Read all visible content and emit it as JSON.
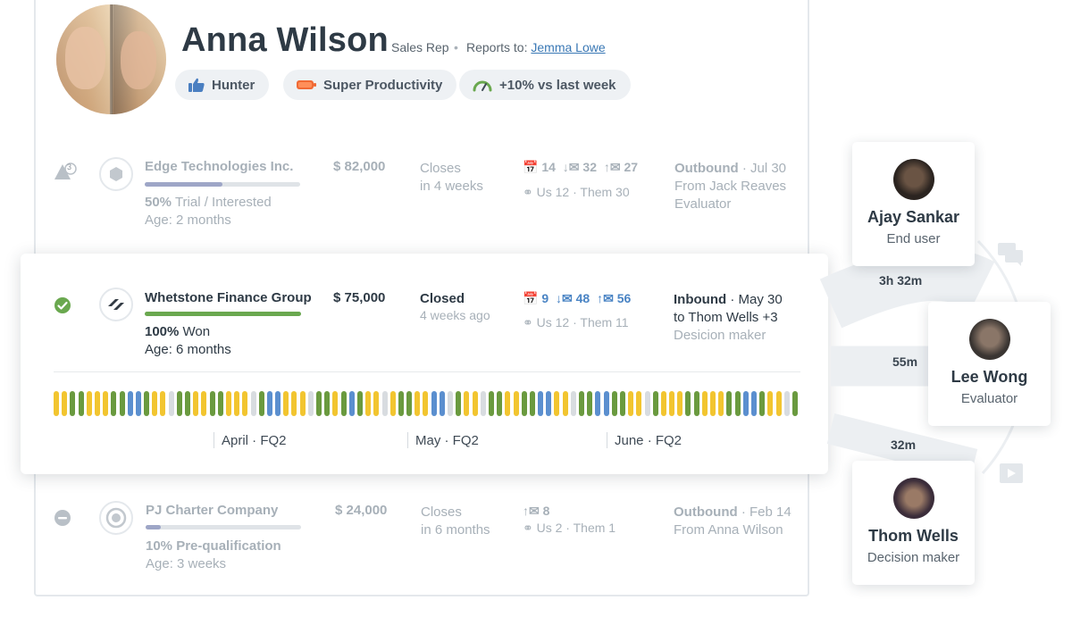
{
  "profile": {
    "name": "Anna Wilson",
    "role": "Sales Rep",
    "separator": "•",
    "reports_label": "Reports to:",
    "reports_name": "Jemma Lowe",
    "badges": [
      {
        "label": "Hunter",
        "icon": "thumbs-up-icon"
      },
      {
        "label": "Super Productivity",
        "icon": "battery-icon"
      },
      {
        "label": "+10% vs last week",
        "icon": "gauge-icon"
      }
    ]
  },
  "deals": [
    {
      "company": "Edge Technologies Inc.",
      "status_icon": "warning-icon",
      "status_badge": "3",
      "progress_pct": "50%",
      "progress_fraction": 0.5,
      "stage": "Trial / Interested",
      "age": "Age: 2 months",
      "amount": "$ 82,000",
      "close_line1": "Closes",
      "close_line2": "in 4 weeks",
      "meetings": "14",
      "inbound_emails": "32",
      "outbound_emails": "27",
      "people": "Us 12 · Them 30",
      "source": "Outbound",
      "source_date": "· Jul 30",
      "source_from": "From Jack Reaves",
      "source_role": "Evaluator"
    },
    {
      "company": "Whetstone Finance Group",
      "status_icon": "check-circle-icon",
      "progress_pct": "100%",
      "progress_fraction": 1.0,
      "stage": "Won",
      "age": "Age: 6 months",
      "amount": "$ 75,000",
      "close_line1": "Closed",
      "close_line2": "4 weeks ago",
      "meetings": "9",
      "inbound_emails": "48",
      "outbound_emails": "56",
      "people": "Us 12 · Them 11",
      "source": "Inbound",
      "source_date": "· May 30",
      "source_from": "to Thom Wells +3",
      "source_role": "Desicion maker",
      "timeline_months": [
        "April · FQ2",
        "May · FQ2",
        "June · FQ2"
      ]
    },
    {
      "company": "PJ Charter Company",
      "status_icon": "minus-circle-icon",
      "progress_pct": "10%",
      "progress_fraction": 0.1,
      "stage": "Pre-qualification",
      "age": "Age: 3 weeks",
      "amount": "$ 24,000",
      "close_line1": "Closes",
      "close_line2": "in 6 months",
      "outbound_emails": "8",
      "people": "Us 2 · Them 1",
      "source": "Outbound",
      "source_date": "· Feb 14",
      "source_from": "From Anna Wilson"
    }
  ],
  "contacts": [
    {
      "name": "Ajay Sankar",
      "role": "End user"
    },
    {
      "name": "Lee Wong",
      "role": "Evaluator"
    },
    {
      "name": "Thom Wells",
      "role": "Decision maker"
    }
  ],
  "durations": [
    "3h 32m",
    "55m",
    "32m"
  ],
  "colors": {
    "won_green": "#6aa84f",
    "trial_bar": "#9ea6c7",
    "yellow": "#f2c530",
    "blue": "#5b8fcf",
    "grey": "#d8dce0",
    "green": "#6a9a3f"
  }
}
